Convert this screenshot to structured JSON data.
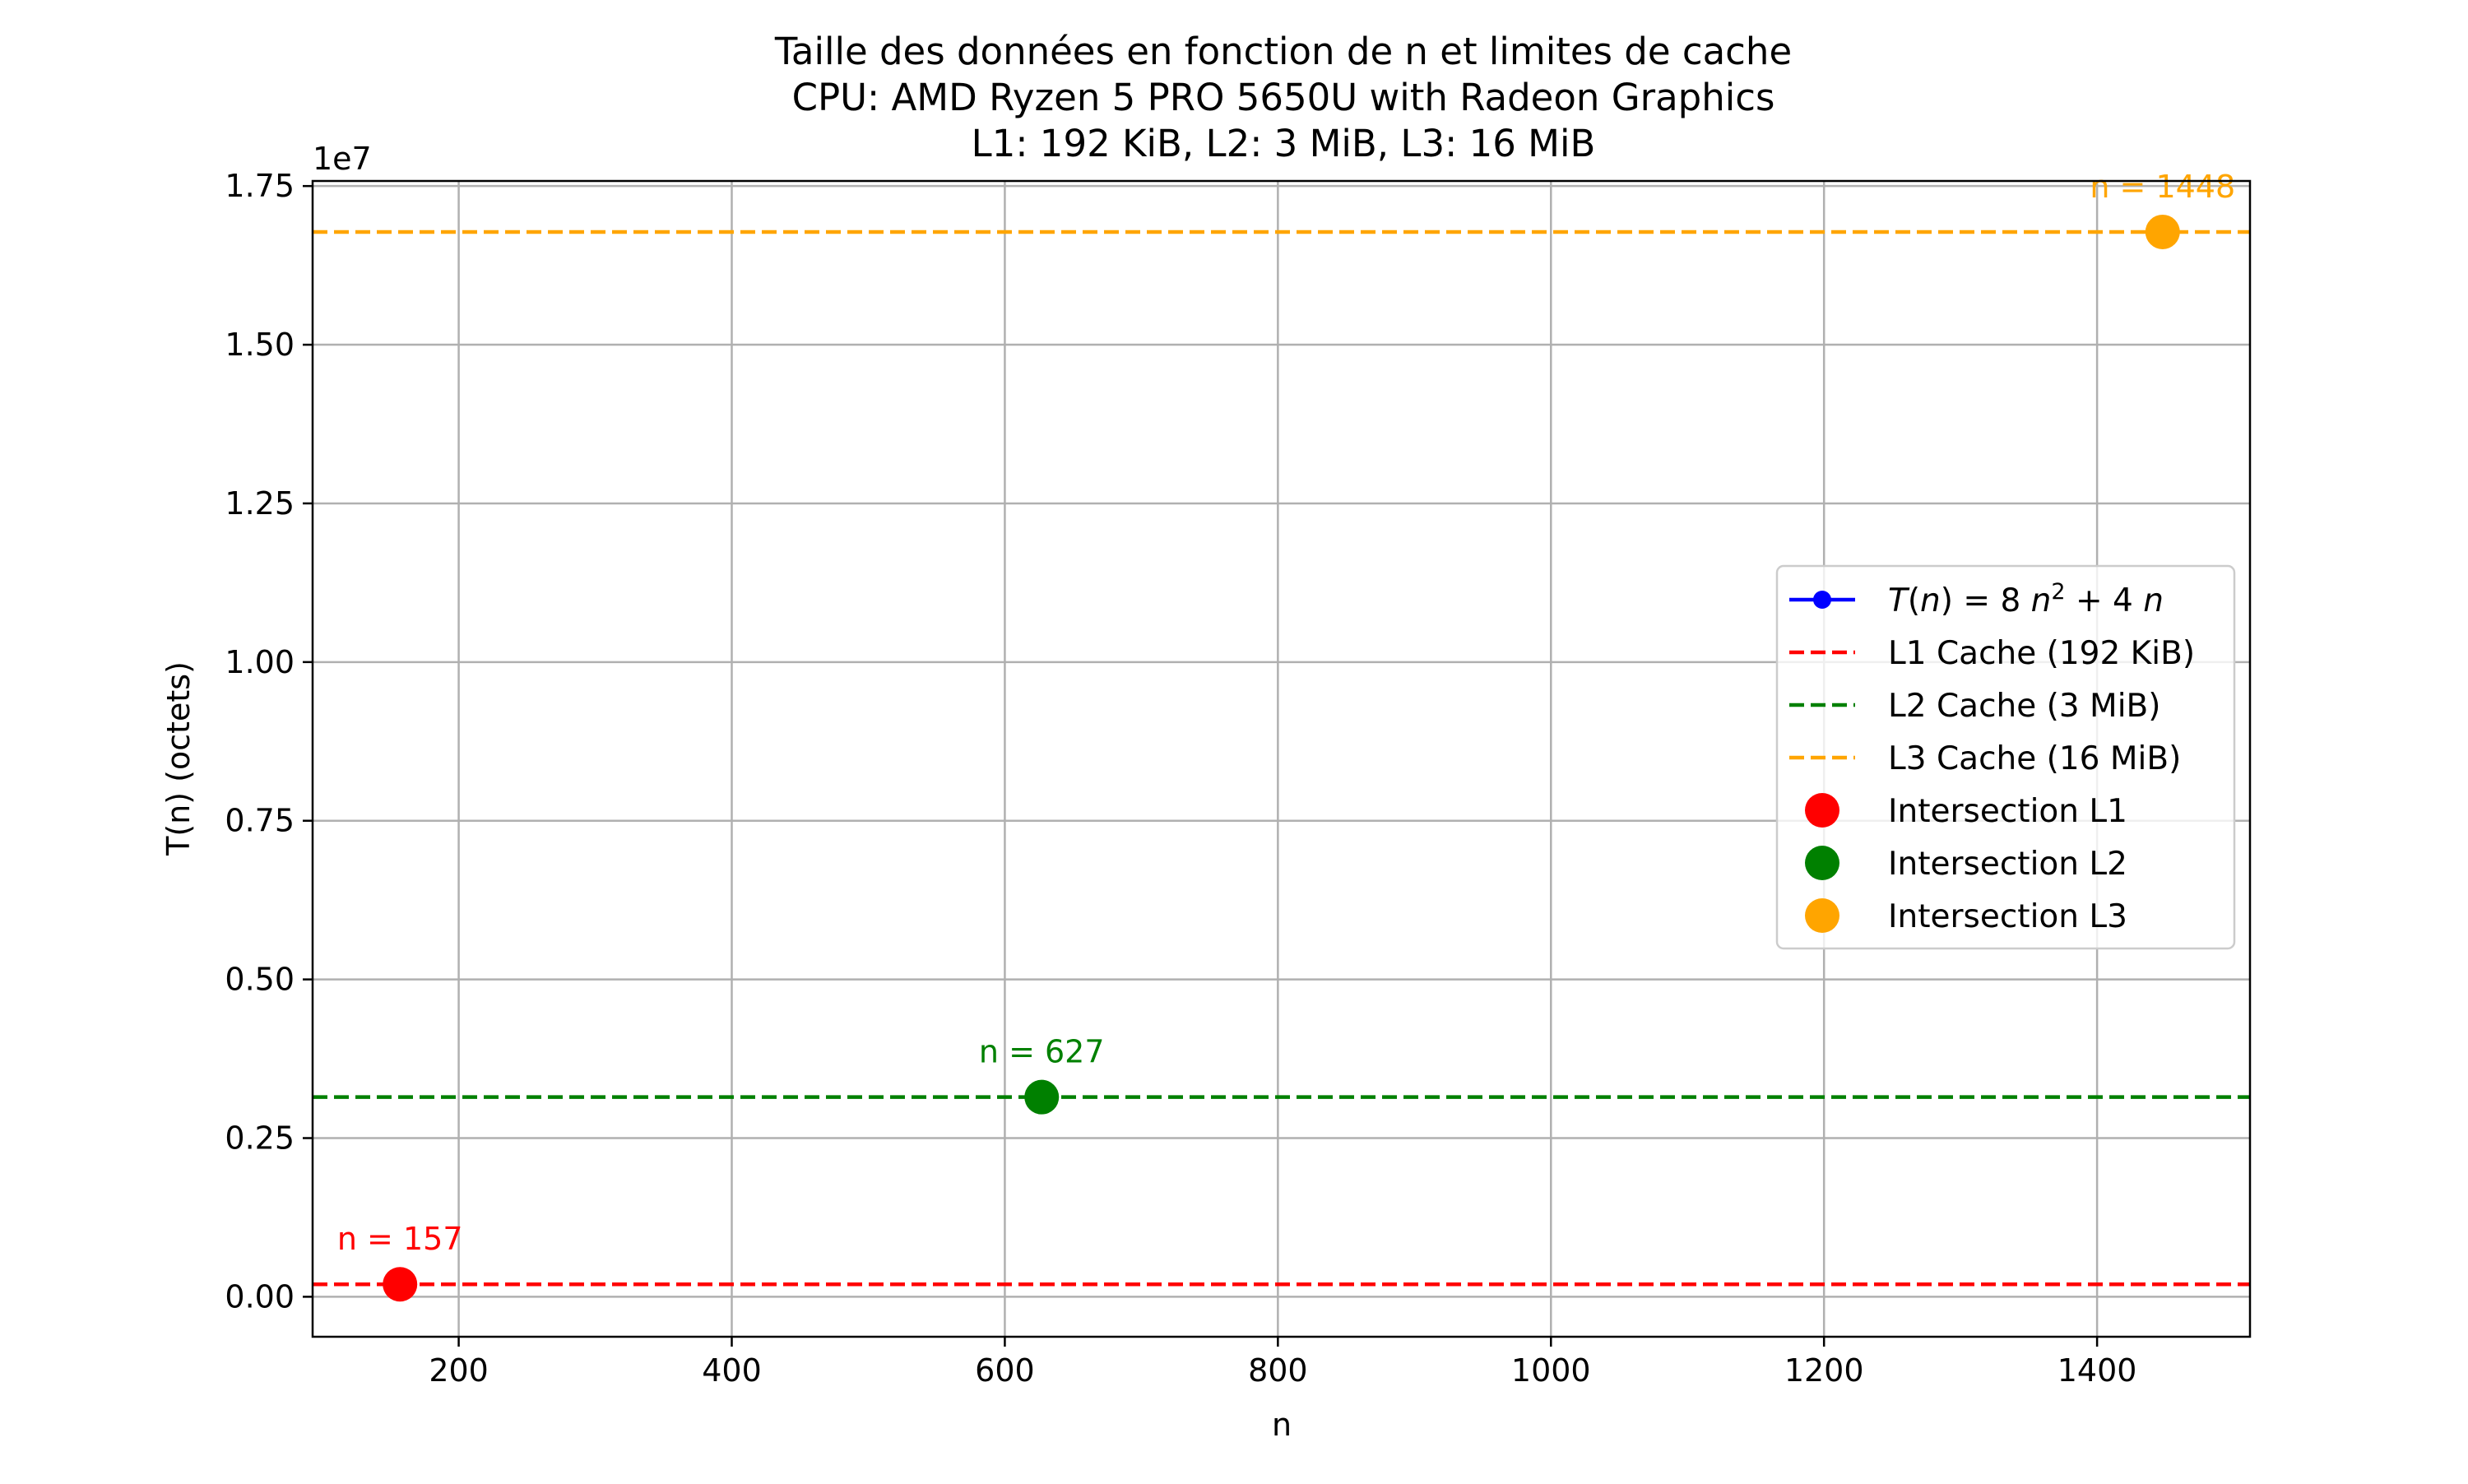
{
  "chart_data": {
    "type": "scatter",
    "title": [
      "Taille des données en fonction de n et limites de cache",
      "CPU: AMD Ryzen 5 PRO 5650U with Radeon Graphics",
      "L1: 192 KiB, L2: 3 MiB, L3: 16 MiB"
    ],
    "xlabel": "n",
    "ylabel": "T(n) (octets)",
    "y_offset_label": "1e7",
    "xlim": [
      93,
      1512
    ],
    "ylim": [
      -0.063,
      1.758
    ],
    "y_scale_note": "values in units of 1e7 octets",
    "xticks": [
      200,
      400,
      600,
      800,
      1000,
      1200,
      1400
    ],
    "xtick_labels": [
      "200",
      "400",
      "600",
      "800",
      "1000",
      "1200",
      "1400"
    ],
    "yticks": [
      0,
      0.25,
      0.5,
      0.75,
      1.0,
      1.25,
      1.5,
      1.75
    ],
    "ytick_labels": [
      "0.00",
      "0.25",
      "0.50",
      "0.75",
      "1.00",
      "1.25",
      "1.50",
      "1.75"
    ],
    "grid": true,
    "legend_position": "center-right",
    "hlines": [
      {
        "name": "L1 Cache (192 KiB)",
        "y": 0.0196608,
        "color": "#ff0000"
      },
      {
        "name": "L2 Cache (3 MiB)",
        "y": 0.3145728,
        "color": "#008000"
      },
      {
        "name": "L3 Cache (16 MiB)",
        "y": 1.6777216,
        "color": "#ffa500"
      }
    ],
    "points": [
      {
        "name": "Intersection L1",
        "x": 157,
        "y": 0.0196608,
        "color": "#ff0000",
        "label": "n = 157"
      },
      {
        "name": "Intersection L2",
        "x": 627,
        "y": 0.3145728,
        "color": "#008000",
        "label": "n = 627"
      },
      {
        "name": "Intersection L3",
        "x": 1448,
        "y": 1.6777216,
        "color": "#ffa500",
        "label": "n = 1448"
      }
    ],
    "legend": [
      {
        "kind": "line-marker",
        "color": "#0000ff"
      },
      {
        "kind": "dashed",
        "label": "L1 Cache (192 KiB)",
        "color": "#ff0000"
      },
      {
        "kind": "dashed",
        "label": "L2 Cache (3 MiB)",
        "color": "#008000"
      },
      {
        "kind": "dashed",
        "label": "L3 Cache (16 MiB)",
        "color": "#ffa500"
      },
      {
        "kind": "dot",
        "label": "Intersection L1",
        "color": "#ff0000"
      },
      {
        "kind": "dot",
        "label": "Intersection L2",
        "color": "#008000"
      },
      {
        "kind": "dot",
        "label": "Intersection L3",
        "color": "#ffa500"
      }
    ],
    "formula_legend": {
      "T": "T",
      "n": "n",
      "eq": ") = 8 ",
      "exp": "2",
      "plus": " + 4 "
    }
  }
}
